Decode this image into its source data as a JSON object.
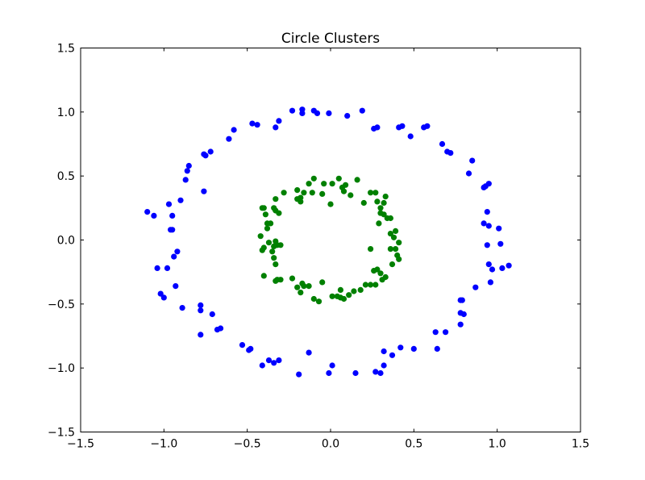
{
  "chart_data": {
    "type": "scatter",
    "title": "Circle Clusters",
    "xlabel": "",
    "ylabel": "",
    "xlim": [
      -1.5,
      1.5
    ],
    "ylim": [
      -1.5,
      1.5
    ],
    "xticks": [
      -1.5,
      -1.0,
      -0.5,
      0.0,
      0.5,
      1.0,
      1.5
    ],
    "yticks": [
      -1.5,
      -1.0,
      -0.5,
      0.0,
      0.5,
      1.0,
      1.5
    ],
    "xtick_labels": [
      "−1.5",
      "−1.0",
      "−0.5",
      "0.0",
      "0.5",
      "1.0",
      "1.5"
    ],
    "ytick_labels": [
      "−1.5",
      "−1.0",
      "−0.5",
      "0.0",
      "0.5",
      "1.0",
      "1.5"
    ],
    "grid": false,
    "series": [
      {
        "color": "#0000ff",
        "points": [
          [
            -0.23,
            1.01
          ],
          [
            -0.17,
            1.02
          ],
          [
            -0.1,
            1.01
          ],
          [
            -0.17,
            0.99
          ],
          [
            -0.08,
            0.99
          ],
          [
            -0.01,
            0.99
          ],
          [
            0.1,
            0.97
          ],
          [
            0.19,
            1.01
          ],
          [
            -0.33,
            0.88
          ],
          [
            -0.31,
            0.93
          ],
          [
            -0.47,
            0.91
          ],
          [
            -0.44,
            0.9
          ],
          [
            -0.58,
            0.86
          ],
          [
            -0.61,
            0.79
          ],
          [
            0.26,
            0.87
          ],
          [
            0.28,
            0.88
          ],
          [
            0.41,
            0.88
          ],
          [
            0.43,
            0.89
          ],
          [
            0.48,
            0.81
          ],
          [
            0.56,
            0.88
          ],
          [
            0.58,
            0.89
          ],
          [
            -0.72,
            0.69
          ],
          [
            -0.75,
            0.66
          ],
          [
            -0.76,
            0.67
          ],
          [
            -0.85,
            0.58
          ],
          [
            -0.86,
            0.54
          ],
          [
            -0.87,
            0.47
          ],
          [
            -0.9,
            0.31
          ],
          [
            -0.76,
            0.38
          ],
          [
            0.67,
            0.75
          ],
          [
            0.7,
            0.69
          ],
          [
            0.72,
            0.68
          ],
          [
            0.85,
            0.62
          ],
          [
            0.83,
            0.52
          ],
          [
            0.92,
            0.41
          ],
          [
            0.93,
            0.42
          ],
          [
            0.95,
            0.44
          ],
          [
            -1.1,
            0.22
          ],
          [
            -1.06,
            0.19
          ],
          [
            -0.95,
            0.19
          ],
          [
            -0.97,
            0.28
          ],
          [
            -0.96,
            0.08
          ],
          [
            -0.95,
            0.08
          ],
          [
            0.94,
            0.22
          ],
          [
            0.92,
            0.13
          ],
          [
            0.95,
            0.11
          ],
          [
            1.01,
            0.09
          ],
          [
            1.02,
            -0.03
          ],
          [
            0.94,
            -0.04
          ],
          [
            -1.04,
            -0.22
          ],
          [
            -0.98,
            -0.22
          ],
          [
            -0.92,
            -0.09
          ],
          [
            -0.94,
            -0.13
          ],
          [
            -1.02,
            -0.42
          ],
          [
            -1.0,
            -0.45
          ],
          [
            -0.93,
            -0.36
          ],
          [
            -0.89,
            -0.53
          ],
          [
            0.95,
            -0.19
          ],
          [
            0.97,
            -0.23
          ],
          [
            1.03,
            -0.22
          ],
          [
            1.07,
            -0.2
          ],
          [
            0.96,
            -0.33
          ],
          [
            0.87,
            -0.37
          ],
          [
            0.78,
            -0.47
          ],
          [
            0.79,
            -0.47
          ],
          [
            -0.78,
            -0.51
          ],
          [
            -0.78,
            -0.55
          ],
          [
            -0.71,
            -0.58
          ],
          [
            -0.78,
            -0.74
          ],
          [
            -0.66,
            -0.69
          ],
          [
            -0.68,
            -0.7
          ],
          [
            -0.53,
            -0.82
          ],
          [
            -0.49,
            -0.86
          ],
          [
            -0.48,
            -0.85
          ],
          [
            0.78,
            -0.57
          ],
          [
            0.8,
            -0.58
          ],
          [
            0.78,
            -0.66
          ],
          [
            0.69,
            -0.72
          ],
          [
            0.63,
            -0.72
          ],
          [
            0.64,
            -0.85
          ],
          [
            0.5,
            -0.85
          ],
          [
            0.42,
            -0.84
          ],
          [
            0.37,
            -0.9
          ],
          [
            -0.41,
            -0.98
          ],
          [
            -0.37,
            -0.94
          ],
          [
            -0.34,
            -0.96
          ],
          [
            -0.31,
            -0.94
          ],
          [
            -0.19,
            -1.05
          ],
          [
            -0.13,
            -0.88
          ],
          [
            -0.01,
            -1.04
          ],
          [
            0.01,
            -0.98
          ],
          [
            0.15,
            -1.04
          ],
          [
            0.27,
            -1.03
          ],
          [
            0.3,
            -1.04
          ],
          [
            0.32,
            -0.98
          ],
          [
            0.32,
            -0.87
          ]
        ]
      },
      {
        "color": "#008000",
        "points": [
          [
            -0.1,
            0.48
          ],
          [
            -0.04,
            0.44
          ],
          [
            0.01,
            0.44
          ],
          [
            0.05,
            0.48
          ],
          [
            0.07,
            0.41
          ],
          [
            0.09,
            0.43
          ],
          [
            0.16,
            0.47
          ],
          [
            0.08,
            0.38
          ],
          [
            -0.05,
            0.36
          ],
          [
            -0.13,
            0.44
          ],
          [
            -0.16,
            0.37
          ],
          [
            -0.2,
            0.39
          ],
          [
            -0.11,
            0.37
          ],
          [
            -0.18,
            0.33
          ],
          [
            -0.2,
            0.32
          ],
          [
            -0.33,
            0.32
          ],
          [
            -0.28,
            0.37
          ],
          [
            -0.18,
            0.3
          ],
          [
            0.12,
            0.35
          ],
          [
            0.24,
            0.37
          ],
          [
            0.27,
            0.37
          ],
          [
            0.33,
            0.34
          ],
          [
            0.28,
            0.3
          ],
          [
            0.32,
            0.29
          ],
          [
            0.2,
            0.29
          ],
          [
            0.0,
            0.28
          ],
          [
            -0.41,
            0.25
          ],
          [
            -0.4,
            0.25
          ],
          [
            -0.39,
            0.2
          ],
          [
            -0.34,
            0.25
          ],
          [
            -0.33,
            0.23
          ],
          [
            -0.31,
            0.21
          ],
          [
            -0.38,
            0.13
          ],
          [
            -0.38,
            0.09
          ],
          [
            -0.36,
            0.13
          ],
          [
            0.3,
            0.25
          ],
          [
            0.3,
            0.21
          ],
          [
            0.32,
            0.2
          ],
          [
            0.34,
            0.17
          ],
          [
            0.36,
            0.17
          ],
          [
            0.29,
            0.13
          ],
          [
            0.36,
            0.05
          ],
          [
            0.39,
            0.07
          ],
          [
            0.38,
            0.02
          ],
          [
            0.41,
            -0.02
          ],
          [
            -0.42,
            0.03
          ],
          [
            -0.37,
            -0.02
          ],
          [
            -0.33,
            -0.01
          ],
          [
            -0.32,
            -0.04
          ],
          [
            -0.34,
            -0.05
          ],
          [
            -0.3,
            -0.04
          ],
          [
            -0.4,
            -0.06
          ],
          [
            -0.41,
            -0.08
          ],
          [
            -0.35,
            -0.09
          ],
          [
            0.36,
            -0.07
          ],
          [
            0.39,
            -0.07
          ],
          [
            0.4,
            -0.12
          ],
          [
            0.41,
            -0.15
          ],
          [
            0.37,
            -0.19
          ],
          [
            0.24,
            -0.07
          ],
          [
            0.26,
            -0.24
          ],
          [
            0.3,
            -0.26
          ],
          [
            0.31,
            -0.31
          ],
          [
            0.33,
            -0.29
          ],
          [
            -0.34,
            -0.14
          ],
          [
            -0.33,
            -0.19
          ],
          [
            -0.4,
            -0.28
          ],
          [
            -0.33,
            -0.32
          ],
          [
            -0.32,
            -0.31
          ],
          [
            -0.3,
            -0.31
          ],
          [
            -0.23,
            -0.3
          ],
          [
            -0.17,
            -0.34
          ],
          [
            -0.16,
            -0.36
          ],
          [
            0.28,
            -0.23
          ],
          [
            0.27,
            -0.35
          ],
          [
            0.24,
            -0.35
          ],
          [
            0.21,
            -0.35
          ],
          [
            0.18,
            -0.39
          ],
          [
            0.14,
            -0.4
          ],
          [
            0.11,
            -0.43
          ],
          [
            0.08,
            -0.46
          ],
          [
            0.06,
            -0.45
          ],
          [
            -0.2,
            -0.37
          ],
          [
            -0.18,
            -0.41
          ],
          [
            -0.13,
            -0.36
          ],
          [
            -0.05,
            -0.33
          ],
          [
            -0.1,
            -0.46
          ],
          [
            -0.07,
            -0.48
          ],
          [
            0.01,
            -0.44
          ],
          [
            0.04,
            -0.44
          ],
          [
            0.06,
            -0.39
          ]
        ]
      }
    ]
  }
}
